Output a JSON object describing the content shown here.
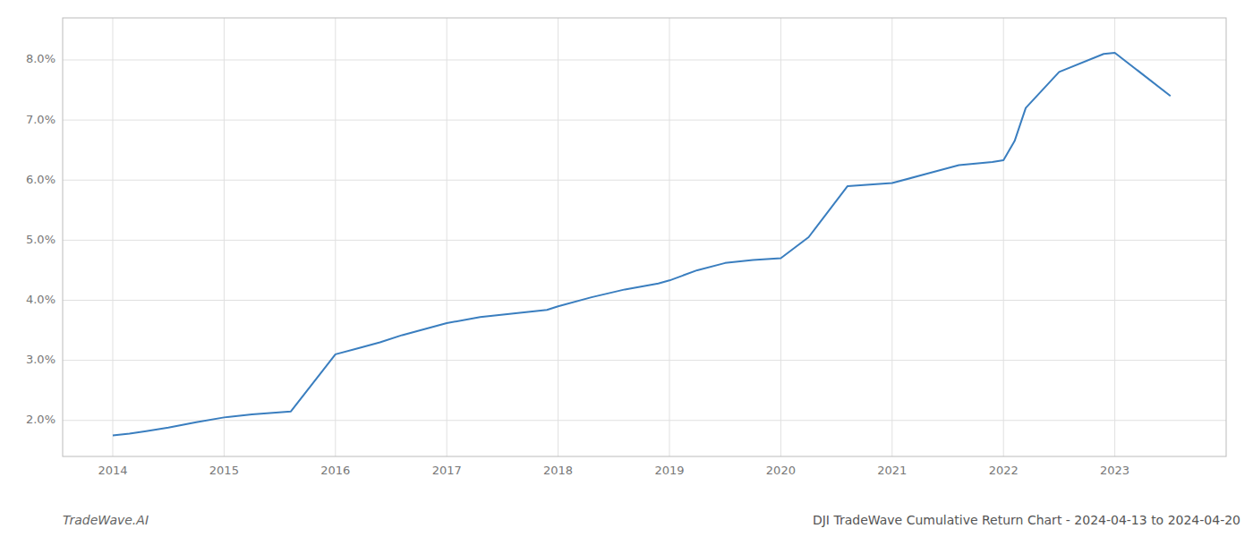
{
  "chart_data": {
    "type": "line",
    "title": "DJI TradeWave Cumulative Return Chart - 2024-04-13 to 2024-04-20",
    "annotations": [
      "TradeWave.AI"
    ],
    "x": [
      2014.0,
      2014.15,
      2014.3,
      2014.5,
      2014.75,
      2015.0,
      2015.25,
      2015.6,
      2016.0,
      2016.2,
      2016.4,
      2016.6,
      2016.8,
      2017.0,
      2017.3,
      2017.6,
      2017.9,
      2018.0,
      2018.3,
      2018.6,
      2018.9,
      2019.0,
      2019.25,
      2019.5,
      2019.75,
      2020.0,
      2020.25,
      2020.6,
      2021.0,
      2021.3,
      2021.6,
      2021.9,
      2022.0,
      2022.1,
      2022.2,
      2022.5,
      2022.9,
      2023.0,
      2023.5
    ],
    "values": [
      1.75,
      1.78,
      1.82,
      1.88,
      1.97,
      2.05,
      2.1,
      2.15,
      3.1,
      3.2,
      3.3,
      3.42,
      3.52,
      3.62,
      3.72,
      3.78,
      3.84,
      3.9,
      4.05,
      4.18,
      4.28,
      4.33,
      4.5,
      4.62,
      4.67,
      4.7,
      5.05,
      5.9,
      5.95,
      6.1,
      6.25,
      6.3,
      6.33,
      6.65,
      7.2,
      7.8,
      8.1,
      8.12,
      7.4
    ],
    "color": "#3a7ebf",
    "xlim": [
      2013.55,
      2024.0
    ],
    "ylim": [
      1.4,
      8.7
    ],
    "xticks": [
      2014,
      2015,
      2016,
      2017,
      2018,
      2019,
      2020,
      2021,
      2022,
      2023
    ],
    "yticks": [
      {
        "value": 2.0,
        "label": "2.0%"
      },
      {
        "value": 3.0,
        "label": "3.0%"
      },
      {
        "value": 4.0,
        "label": "4.0%"
      },
      {
        "value": 5.0,
        "label": "5.0%"
      },
      {
        "value": 6.0,
        "label": "6.0%"
      },
      {
        "value": 7.0,
        "label": "7.0%"
      },
      {
        "value": 8.0,
        "label": "8.0%"
      }
    ],
    "grid": true
  }
}
